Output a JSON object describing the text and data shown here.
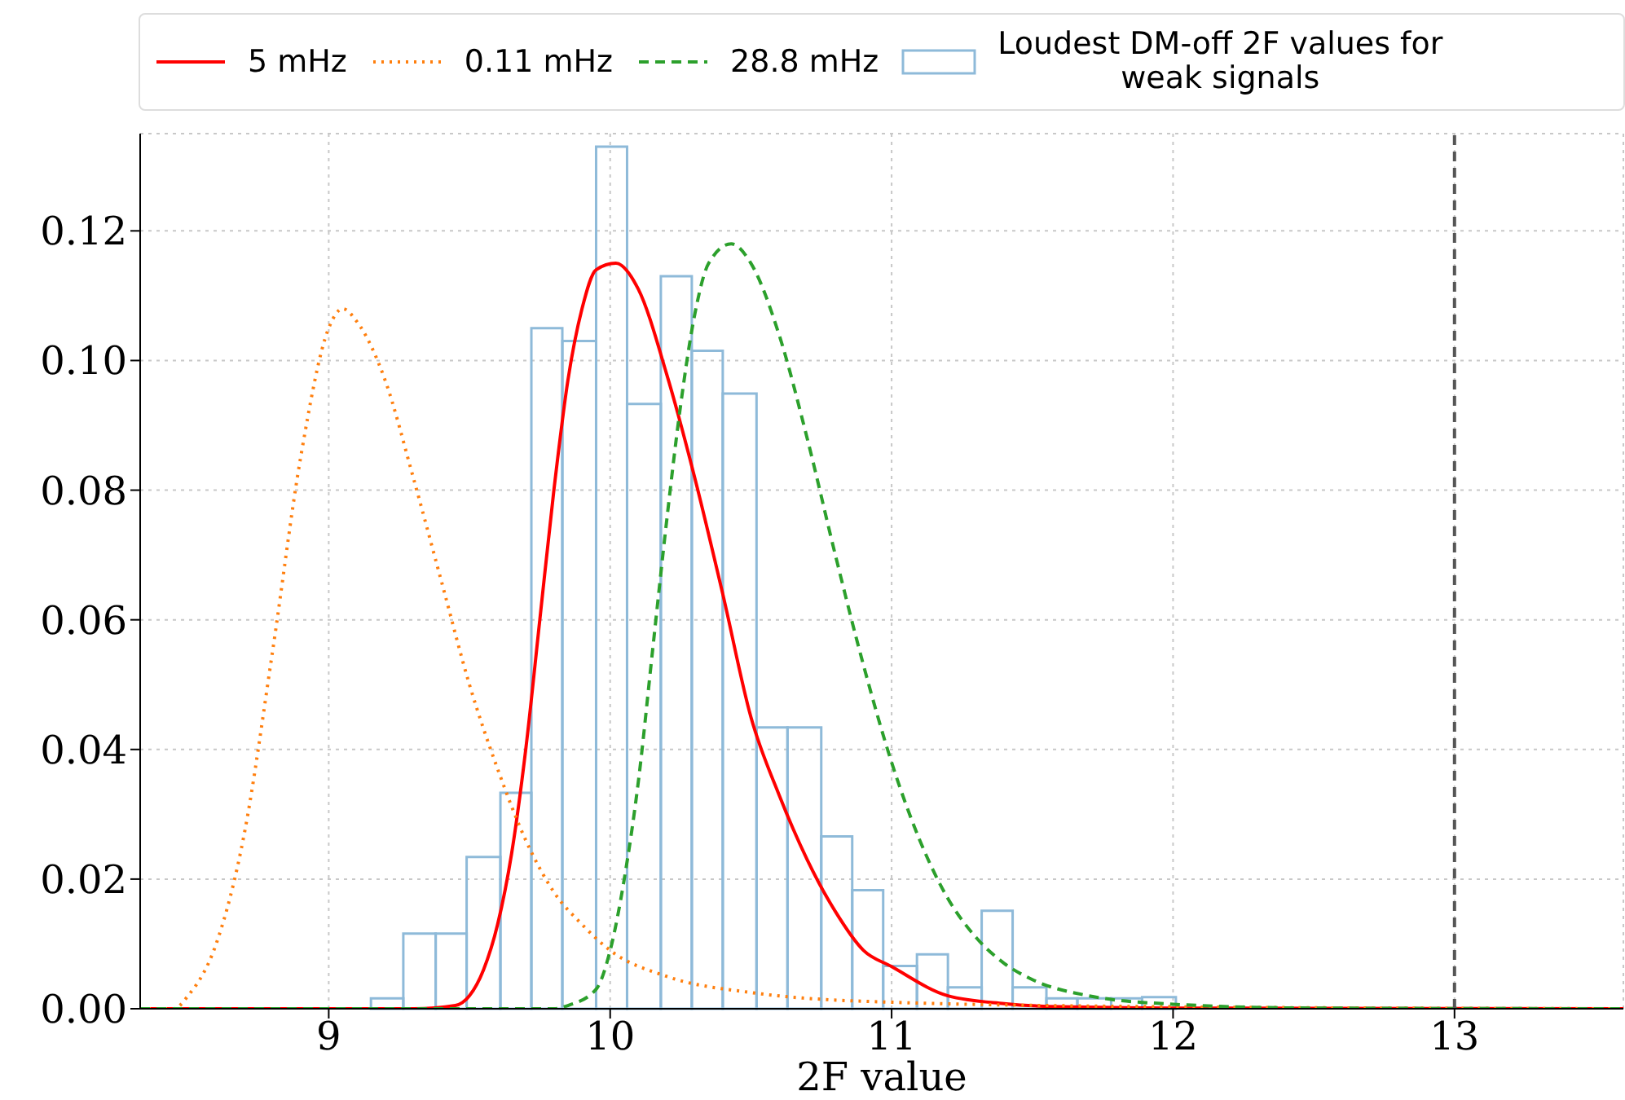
{
  "chart_data": {
    "type": "histogram",
    "xlabel": "2F value",
    "xlim": [
      8.33,
      13.6
    ],
    "ylim": [
      0,
      0.135
    ],
    "xticks": [
      9,
      10,
      11,
      12,
      13
    ],
    "yticks": [
      {
        "value": 0,
        "label": "0.00"
      },
      {
        "value": 0.02,
        "label": "0.02"
      },
      {
        "value": 0.04,
        "label": "0.04"
      },
      {
        "value": 0.06,
        "label": "0.06"
      },
      {
        "value": 0.08,
        "label": "0.08"
      },
      {
        "value": 0.1,
        "label": "0.10"
      },
      {
        "value": 0.12,
        "label": "0.12"
      }
    ],
    "grid": true,
    "legend": "top",
    "marker": "none",
    "ref_lines": [
      {
        "axis": "x",
        "value": 13,
        "color": "#555555",
        "line_style": "dashed"
      }
    ],
    "series": [
      {
        "type": "line",
        "name": "5 mHz",
        "color": "#ff0000",
        "line_style": "solid",
        "x": [
          8.33,
          9.3,
          9.45,
          9.5,
          9.55,
          9.6,
          9.65,
          9.7,
          9.75,
          9.8,
          9.85,
          9.9,
          9.95,
          10.02,
          10.1,
          10.2,
          10.3,
          10.4,
          10.5,
          10.6,
          10.7,
          10.8,
          10.9,
          11.0,
          11.2,
          11.4,
          11.6,
          12.0,
          13.6
        ],
        "values": [
          0,
          0,
          0.0005,
          0.002,
          0.006,
          0.013,
          0.024,
          0.04,
          0.06,
          0.08,
          0.097,
          0.108,
          0.114,
          0.115,
          0.111,
          0.098,
          0.082,
          0.064,
          0.045,
          0.033,
          0.023,
          0.015,
          0.009,
          0.0065,
          0.002,
          0.0008,
          0.0003,
          0.0001,
          0
        ]
      },
      {
        "type": "line",
        "name": "0.11 mHz",
        "color": "#ff7f0e",
        "line_style": "dotted",
        "x": [
          8.33,
          8.45,
          8.5,
          8.6,
          8.7,
          8.8,
          8.9,
          9.0,
          9.05,
          9.1,
          9.2,
          9.3,
          9.4,
          9.5,
          9.6,
          9.7,
          9.8,
          9.9,
          10.0,
          10.2,
          10.5,
          11.0,
          12.0,
          13.6
        ],
        "values": [
          0,
          0,
          0.002,
          0.01,
          0.027,
          0.055,
          0.085,
          0.105,
          0.108,
          0.106,
          0.097,
          0.082,
          0.066,
          0.05,
          0.037,
          0.026,
          0.018,
          0.013,
          0.009,
          0.005,
          0.0025,
          0.001,
          0.0003,
          0
        ]
      },
      {
        "type": "line",
        "name": "28.8 mHz",
        "color": "#2ca02c",
        "line_style": "dashed",
        "x": [
          8.33,
          9.8,
          9.85,
          9.95,
          10.0,
          10.05,
          10.1,
          10.15,
          10.2,
          10.25,
          10.3,
          10.35,
          10.43,
          10.5,
          10.6,
          10.7,
          10.8,
          10.9,
          11.0,
          11.1,
          11.2,
          11.3,
          11.4,
          11.5,
          11.7,
          12.0,
          12.5,
          13.6
        ],
        "values": [
          0,
          0,
          0.0005,
          0.003,
          0.009,
          0.02,
          0.035,
          0.055,
          0.075,
          0.093,
          0.107,
          0.115,
          0.118,
          0.115,
          0.104,
          0.088,
          0.07,
          0.053,
          0.038,
          0.026,
          0.017,
          0.011,
          0.007,
          0.0045,
          0.002,
          0.0007,
          0.0001,
          0
        ]
      },
      {
        "name": "Loudest DM-off 2F values for weak signals",
        "color": "#8ebad9",
        "bins": [
          9.15,
          9.265,
          9.38,
          9.49,
          9.61,
          9.72,
          9.83,
          9.95,
          10.06,
          10.18,
          10.29,
          10.4,
          10.52,
          10.63,
          10.75,
          10.86,
          10.97,
          11.09,
          11.2,
          11.32,
          11.43,
          11.55,
          11.66,
          11.78,
          11.89,
          12.01
        ],
        "values": [
          0.0016,
          0.0116,
          0.0116,
          0.0234,
          0.0333,
          0.105,
          0.103,
          0.133,
          0.0933,
          0.113,
          0.1015,
          0.0949,
          0.0434,
          0.0434,
          0.0266,
          0.0183,
          0.0066,
          0.0084,
          0.0033,
          0.0151,
          0.0033,
          0.0016,
          0.0016,
          0.0016,
          0.0018
        ]
      }
    ]
  }
}
